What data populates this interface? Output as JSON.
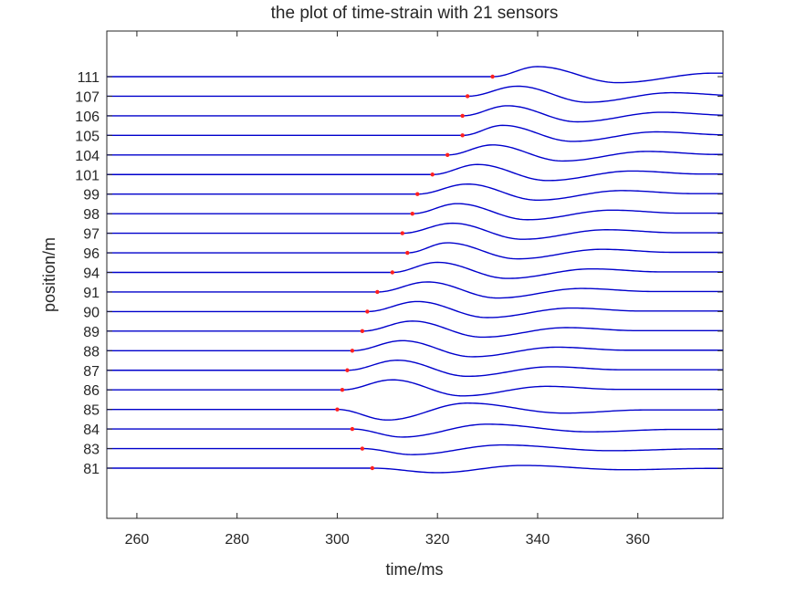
{
  "chart_data": {
    "type": "line",
    "title": "the plot of time-strain with 21 sensors",
    "xlabel": "time/ms",
    "ylabel": "position/m",
    "xlim": [
      254,
      377
    ],
    "xticks": [
      260,
      280,
      300,
      320,
      340,
      360
    ],
    "grid": false,
    "line_color": "#0000cc",
    "marker_color": "#ff2020",
    "sensors": [
      {
        "label": "111",
        "arrival_ms": 331,
        "peak_ms": 340,
        "trough_ms": 356,
        "amp": 1.0,
        "sign": 1
      },
      {
        "label": "107",
        "arrival_ms": 326,
        "peak_ms": 336,
        "trough_ms": 350,
        "amp": 1.0,
        "sign": 1
      },
      {
        "label": "106",
        "arrival_ms": 325,
        "peak_ms": 334,
        "trough_ms": 348,
        "amp": 1.0,
        "sign": 1
      },
      {
        "label": "105",
        "arrival_ms": 325,
        "peak_ms": 333,
        "trough_ms": 347,
        "amp": 1.0,
        "sign": 1
      },
      {
        "label": "104",
        "arrival_ms": 322,
        "peak_ms": 331,
        "trough_ms": 345,
        "amp": 1.0,
        "sign": 1
      },
      {
        "label": "101",
        "arrival_ms": 319,
        "peak_ms": 328,
        "trough_ms": 342,
        "amp": 1.0,
        "sign": 1
      },
      {
        "label": "99",
        "arrival_ms": 316,
        "peak_ms": 326,
        "trough_ms": 340,
        "amp": 1.0,
        "sign": 1
      },
      {
        "label": "98",
        "arrival_ms": 315,
        "peak_ms": 324,
        "trough_ms": 338,
        "amp": 1.0,
        "sign": 1
      },
      {
        "label": "97",
        "arrival_ms": 313,
        "peak_ms": 323,
        "trough_ms": 337,
        "amp": 1.0,
        "sign": 1
      },
      {
        "label": "96",
        "arrival_ms": 314,
        "peak_ms": 322,
        "trough_ms": 336,
        "amp": 1.0,
        "sign": 1
      },
      {
        "label": "94",
        "arrival_ms": 311,
        "peak_ms": 320,
        "trough_ms": 334,
        "amp": 1.0,
        "sign": 1
      },
      {
        "label": "91",
        "arrival_ms": 308,
        "peak_ms": 318,
        "trough_ms": 332,
        "amp": 1.0,
        "sign": 1
      },
      {
        "label": "90",
        "arrival_ms": 306,
        "peak_ms": 316,
        "trough_ms": 330,
        "amp": 1.0,
        "sign": 1
      },
      {
        "label": "89",
        "arrival_ms": 305,
        "peak_ms": 315,
        "trough_ms": 329,
        "amp": 1.0,
        "sign": 1
      },
      {
        "label": "88",
        "arrival_ms": 303,
        "peak_ms": 313,
        "trough_ms": 327,
        "amp": 1.0,
        "sign": 1
      },
      {
        "label": "87",
        "arrival_ms": 302,
        "peak_ms": 312,
        "trough_ms": 326,
        "amp": 1.0,
        "sign": 1
      },
      {
        "label": "86",
        "arrival_ms": 301,
        "peak_ms": 311,
        "trough_ms": 325,
        "amp": 1.0,
        "sign": 1
      },
      {
        "label": "85",
        "arrival_ms": 300,
        "peak_ms": 310,
        "trough_ms": 326,
        "amp": 1.05,
        "sign": -1
      },
      {
        "label": "84",
        "arrival_ms": 303,
        "peak_ms": 313,
        "trough_ms": 330,
        "amp": 0.8,
        "sign": -1
      },
      {
        "label": "83",
        "arrival_ms": 305,
        "peak_ms": 315,
        "trough_ms": 333,
        "amp": 0.6,
        "sign": -1
      },
      {
        "label": "81",
        "arrival_ms": 307,
        "peak_ms": 320,
        "trough_ms": 337,
        "amp": 0.45,
        "sign": -1
      }
    ]
  }
}
